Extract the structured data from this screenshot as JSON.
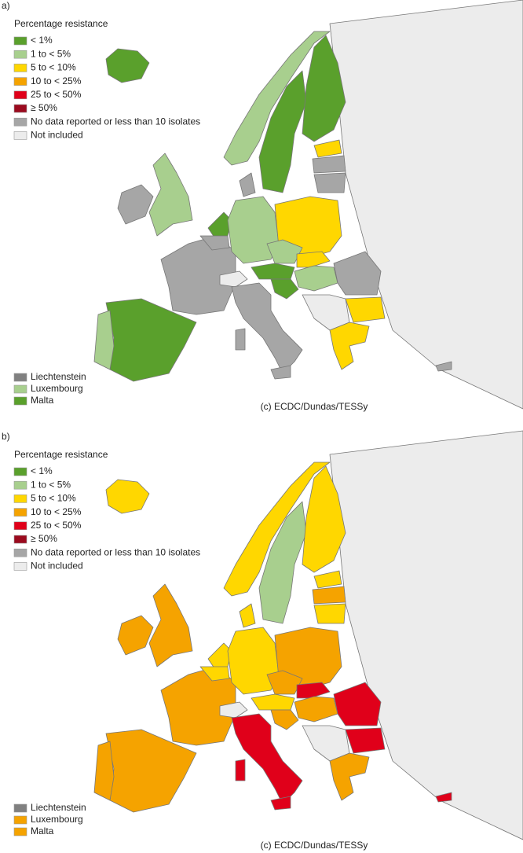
{
  "panels": [
    {
      "label": "a)",
      "legend_title": "Percentage resistance",
      "legend": [
        {
          "label": "< 1%",
          "color": "#5aa02c"
        },
        {
          "label": "1 to < 5%",
          "color": "#a8cf8e"
        },
        {
          "label": "5 to < 10%",
          "color": "#ffd700"
        },
        {
          "label": "10 to < 25%",
          "color": "#f5a300"
        },
        {
          "label": "25 to < 50%",
          "color": "#e0001a"
        },
        {
          "label": "≥ 50%",
          "color": "#9b0a1e"
        },
        {
          "label": "No data reported or less than 10 isolates",
          "color": "#a6a6a6"
        },
        {
          "label": "Not included",
          "color": "#ececec"
        }
      ],
      "small_countries": [
        {
          "label": "Liechtenstein",
          "color": "#808080"
        },
        {
          "label": "Luxembourg",
          "color": "#a8cf8e"
        },
        {
          "label": "Malta",
          "color": "#5aa02c"
        }
      ],
      "credit": "(c) ECDC/Dundas/TESSy"
    },
    {
      "label": "b)",
      "legend_title": "Percentage resistance",
      "legend": [
        {
          "label": "< 1%",
          "color": "#5aa02c"
        },
        {
          "label": "1 to < 5%",
          "color": "#a8cf8e"
        },
        {
          "label": "5 to < 10%",
          "color": "#ffd700"
        },
        {
          "label": "10 to < 25%",
          "color": "#f5a300"
        },
        {
          "label": "25 to < 50%",
          "color": "#e0001a"
        },
        {
          "label": "≥ 50%",
          "color": "#9b0a1e"
        },
        {
          "label": "No data reported or less than 10 isolates",
          "color": "#a6a6a6"
        },
        {
          "label": "Not included",
          "color": "#ececec"
        }
      ],
      "small_countries": [
        {
          "label": "Liechtenstein",
          "color": "#808080"
        },
        {
          "label": "Luxembourg",
          "color": "#f5a300"
        },
        {
          "label": "Malta",
          "color": "#f5a300"
        }
      ],
      "credit": "(c) ECDC/Dundas/TESSy"
    }
  ]
}
